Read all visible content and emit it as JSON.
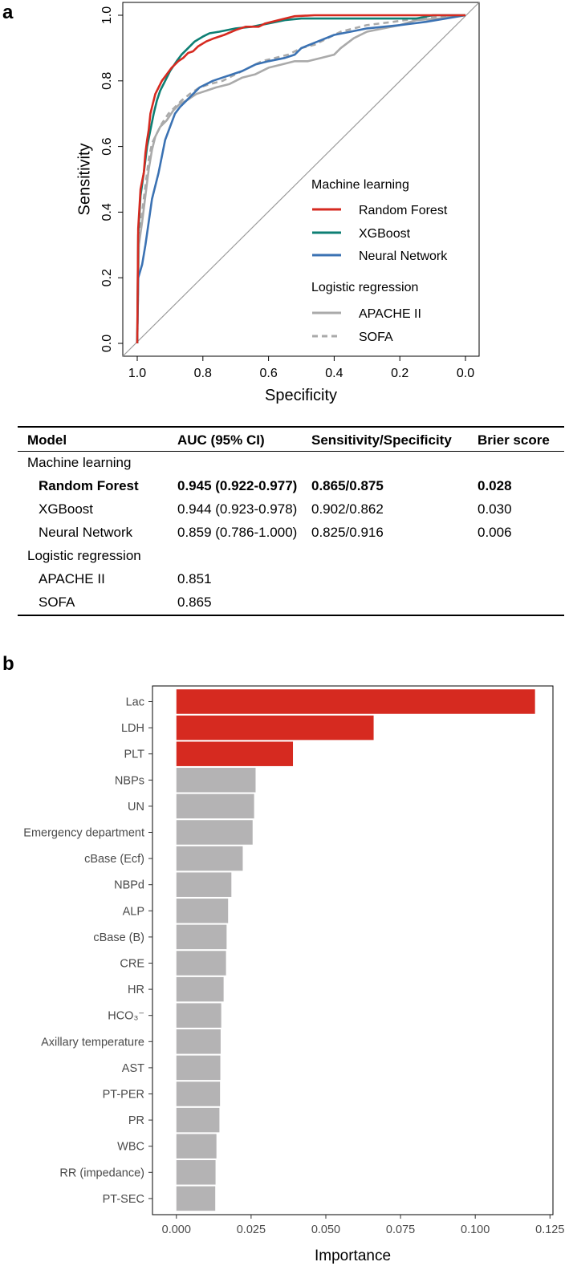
{
  "panels": {
    "a": "a",
    "b": "b"
  },
  "chart_data": [
    {
      "type": "line",
      "title": "",
      "xlabel": "Specificity",
      "ylabel": "Sensitivity",
      "xlim": [
        1.0,
        0.0
      ],
      "ylim": [
        0.0,
        1.0
      ],
      "xticks": [
        "1.0",
        "0.8",
        "0.6",
        "0.4",
        "0.2",
        "0.0"
      ],
      "yticks": [
        "0.0",
        "0.2",
        "0.4",
        "0.6",
        "0.8",
        "1.0"
      ],
      "legend_groups": [
        "Machine learning",
        "Logistic regression"
      ],
      "series": [
        {
          "name": "Random Forest",
          "group": "Machine learning",
          "color": "#d62a20",
          "dash": "solid",
          "points": [
            [
              1.0,
              0.0
            ],
            [
              0.997,
              0.35
            ],
            [
              0.99,
              0.47
            ],
            [
              0.98,
              0.52
            ],
            [
              0.975,
              0.58
            ],
            [
              0.97,
              0.62
            ],
            [
              0.965,
              0.65
            ],
            [
              0.96,
              0.7
            ],
            [
              0.955,
              0.72
            ],
            [
              0.945,
              0.76
            ],
            [
              0.935,
              0.78
            ],
            [
              0.925,
              0.8
            ],
            [
              0.91,
              0.82
            ],
            [
              0.895,
              0.84
            ],
            [
              0.875,
              0.86
            ],
            [
              0.86,
              0.87
            ],
            [
              0.845,
              0.885
            ],
            [
              0.83,
              0.89
            ],
            [
              0.815,
              0.905
            ],
            [
              0.79,
              0.92
            ],
            [
              0.765,
              0.93
            ],
            [
              0.735,
              0.94
            ],
            [
              0.7,
              0.955
            ],
            [
              0.67,
              0.965
            ],
            [
              0.63,
              0.965
            ],
            [
              0.61,
              0.975
            ],
            [
              0.57,
              0.985
            ],
            [
              0.55,
              0.99
            ],
            [
              0.52,
              0.997
            ],
            [
              0.46,
              1.0
            ],
            [
              0.3,
              1.0
            ],
            [
              0.15,
              1.0
            ],
            [
              0.0,
              1.0
            ]
          ]
        },
        {
          "name": "XGBoost",
          "group": "Machine learning",
          "color": "#0e7f74",
          "dash": "solid",
          "points": [
            [
              1.0,
              0.0
            ],
            [
              0.997,
              0.33
            ],
            [
              0.99,
              0.45
            ],
            [
              0.98,
              0.52
            ],
            [
              0.97,
              0.6
            ],
            [
              0.96,
              0.65
            ],
            [
              0.95,
              0.7
            ],
            [
              0.94,
              0.74
            ],
            [
              0.93,
              0.77
            ],
            [
              0.915,
              0.8
            ],
            [
              0.9,
              0.83
            ],
            [
              0.88,
              0.86
            ],
            [
              0.865,
              0.88
            ],
            [
              0.845,
              0.9
            ],
            [
              0.825,
              0.92
            ],
            [
              0.8,
              0.935
            ],
            [
              0.78,
              0.945
            ],
            [
              0.75,
              0.95
            ],
            [
              0.7,
              0.96
            ],
            [
              0.65,
              0.965
            ],
            [
              0.6,
              0.975
            ],
            [
              0.55,
              0.985
            ],
            [
              0.5,
              0.99
            ],
            [
              0.4,
              0.99
            ],
            [
              0.3,
              0.99
            ],
            [
              0.15,
              0.99
            ],
            [
              0.1,
              1.0
            ],
            [
              0.0,
              1.0
            ]
          ]
        },
        {
          "name": "Neural Network",
          "group": "Machine learning",
          "color": "#3b72b3",
          "dash": "solid",
          "points": [
            [
              1.0,
              0.0
            ],
            [
              0.997,
              0.2
            ],
            [
              0.985,
              0.24
            ],
            [
              0.975,
              0.3
            ],
            [
              0.965,
              0.37
            ],
            [
              0.955,
              0.44
            ],
            [
              0.945,
              0.48
            ],
            [
              0.935,
              0.52
            ],
            [
              0.925,
              0.57
            ],
            [
              0.915,
              0.62
            ],
            [
              0.9,
              0.66
            ],
            [
              0.885,
              0.7
            ],
            [
              0.87,
              0.72
            ],
            [
              0.85,
              0.74
            ],
            [
              0.83,
              0.76
            ],
            [
              0.81,
              0.78
            ],
            [
              0.79,
              0.79
            ],
            [
              0.77,
              0.8
            ],
            [
              0.74,
              0.81
            ],
            [
              0.71,
              0.82
            ],
            [
              0.68,
              0.83
            ],
            [
              0.64,
              0.85
            ],
            [
              0.6,
              0.86
            ],
            [
              0.55,
              0.87
            ],
            [
              0.52,
              0.88
            ],
            [
              0.5,
              0.9
            ],
            [
              0.45,
              0.92
            ],
            [
              0.4,
              0.94
            ],
            [
              0.35,
              0.95
            ],
            [
              0.3,
              0.96
            ],
            [
              0.2,
              0.97
            ],
            [
              0.12,
              0.98
            ],
            [
              0.06,
              0.99
            ],
            [
              0.0,
              1.0
            ]
          ]
        },
        {
          "name": "APACHE II",
          "group": "Logistic regression",
          "color": "#aaaaaa",
          "dash": "solid",
          "points": [
            [
              1.0,
              0.0
            ],
            [
              0.995,
              0.3
            ],
            [
              0.985,
              0.37
            ],
            [
              0.975,
              0.45
            ],
            [
              0.965,
              0.53
            ],
            [
              0.955,
              0.59
            ],
            [
              0.945,
              0.63
            ],
            [
              0.93,
              0.66
            ],
            [
              0.91,
              0.68
            ],
            [
              0.89,
              0.71
            ],
            [
              0.87,
              0.73
            ],
            [
              0.85,
              0.74
            ],
            [
              0.82,
              0.76
            ],
            [
              0.79,
              0.77
            ],
            [
              0.76,
              0.78
            ],
            [
              0.72,
              0.79
            ],
            [
              0.68,
              0.81
            ],
            [
              0.64,
              0.82
            ],
            [
              0.6,
              0.84
            ],
            [
              0.56,
              0.85
            ],
            [
              0.52,
              0.86
            ],
            [
              0.48,
              0.86
            ],
            [
              0.44,
              0.87
            ],
            [
              0.4,
              0.88
            ],
            [
              0.38,
              0.9
            ],
            [
              0.34,
              0.93
            ],
            [
              0.3,
              0.95
            ],
            [
              0.25,
              0.96
            ],
            [
              0.2,
              0.97
            ],
            [
              0.15,
              0.985
            ],
            [
              0.08,
              0.99
            ],
            [
              0.0,
              1.0
            ]
          ]
        },
        {
          "name": "SOFA",
          "group": "Logistic regression",
          "color": "#aaaaaa",
          "dash": "dashed",
          "points": [
            [
              1.0,
              0.0
            ],
            [
              0.995,
              0.32
            ],
            [
              0.985,
              0.4
            ],
            [
              0.975,
              0.48
            ],
            [
              0.965,
              0.56
            ],
            [
              0.955,
              0.61
            ],
            [
              0.94,
              0.64
            ],
            [
              0.925,
              0.67
            ],
            [
              0.905,
              0.7
            ],
            [
              0.885,
              0.72
            ],
            [
              0.865,
              0.74
            ],
            [
              0.84,
              0.76
            ],
            [
              0.81,
              0.78
            ],
            [
              0.78,
              0.79
            ],
            [
              0.74,
              0.8
            ],
            [
              0.7,
              0.82
            ],
            [
              0.66,
              0.84
            ],
            [
              0.62,
              0.86
            ],
            [
              0.58,
              0.87
            ],
            [
              0.54,
              0.88
            ],
            [
              0.5,
              0.9
            ],
            [
              0.46,
              0.91
            ],
            [
              0.42,
              0.93
            ],
            [
              0.38,
              0.95
            ],
            [
              0.34,
              0.96
            ],
            [
              0.3,
              0.97
            ],
            [
              0.22,
              0.98
            ],
            [
              0.15,
              0.99
            ],
            [
              0.0,
              1.0
            ]
          ]
        }
      ],
      "reference_line": [
        [
          1.0,
          0.0
        ],
        [
          0.0,
          1.0
        ]
      ]
    },
    {
      "type": "bar",
      "orientation": "horizontal",
      "xlabel": "Importance",
      "xlim": [
        -0.008,
        0.126
      ],
      "xticks": [
        "0.000",
        "0.025",
        "0.050",
        "0.075",
        "0.100",
        "0.125"
      ],
      "categories": [
        "Lac",
        "LDH",
        "PLT",
        "NBPs",
        "UN",
        "Emergency department",
        "cBase (Ecf)",
        "NBPd",
        "ALP",
        "cBase (B)",
        "CRE",
        "HR",
        "HCO₃⁻",
        "Axillary temperature",
        "AST",
        "PT-PER",
        "PR",
        "WBC",
        "RR (impedance)",
        "PT-SEC"
      ],
      "values": [
        0.12,
        0.066,
        0.039,
        0.0265,
        0.026,
        0.0255,
        0.0222,
        0.0184,
        0.0173,
        0.0168,
        0.0166,
        0.0158,
        0.015,
        0.0148,
        0.0147,
        0.0146,
        0.0144,
        0.0134,
        0.0131,
        0.013
      ],
      "highlight_count": 3,
      "highlight_color": "#d62a20",
      "base_color": "#b4b3b4"
    }
  ],
  "table": {
    "headers": [
      "Model",
      "AUC (95% CI)",
      "Sensitivity/Specificity",
      "Brier score"
    ],
    "rows": [
      {
        "cells": [
          "Machine learning",
          "",
          "",
          ""
        ],
        "type": "group"
      },
      {
        "cells": [
          "Random Forest",
          "0.945 (0.922-0.977)",
          "0.865/0.875",
          "0.028"
        ],
        "type": "bold"
      },
      {
        "cells": [
          "XGBoost",
          "0.944 (0.923-0.978)",
          "0.902/0.862",
          "0.030"
        ],
        "type": "item"
      },
      {
        "cells": [
          "Neural Network",
          "0.859 (0.786-1.000)",
          "0.825/0.916",
          "0.006"
        ],
        "type": "item"
      },
      {
        "cells": [
          "Logistic regression",
          "",
          "",
          ""
        ],
        "type": "group"
      },
      {
        "cells": [
          "APACHE II",
          "0.851",
          "",
          ""
        ],
        "type": "item"
      },
      {
        "cells": [
          "SOFA",
          "0.865",
          "",
          ""
        ],
        "type": "item"
      }
    ]
  }
}
